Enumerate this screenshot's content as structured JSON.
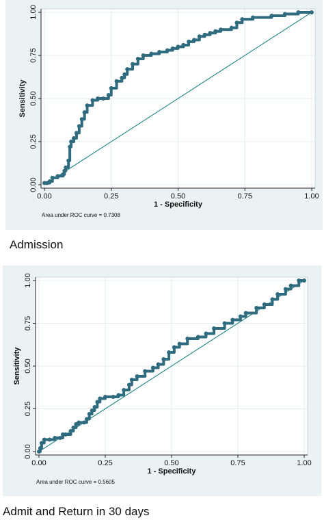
{
  "chart_data": [
    {
      "type": "line",
      "xlabel": "1 - Specificity",
      "ylabel": "Sensitivity",
      "xlim": [
        0,
        1
      ],
      "ylim": [
        0,
        1
      ],
      "xticks": [
        "0.00",
        "0.25",
        "0.50",
        "0.75",
        "1.00"
      ],
      "yticks": [
        "0.00",
        "0.25",
        "0.50",
        "0.75",
        "1.00"
      ],
      "grid": true,
      "annotation": "Area under ROC curve = 0.7308",
      "caption": "Admission",
      "colors": {
        "curve": "#2f6b7f",
        "reference": "#2e8b8b",
        "background": "#eaf2f3",
        "plot": "#ffffff"
      },
      "series": [
        {
          "values": [
            [
              0,
              0.01
            ],
            [
              0.01,
              0.01
            ],
            [
              0.02,
              0.02
            ],
            [
              0.03,
              0.04
            ],
            [
              0.05,
              0.05
            ],
            [
              0.07,
              0.06
            ],
            [
              0.075,
              0.08
            ],
            [
              0.08,
              0.1
            ],
            [
              0.09,
              0.14
            ],
            [
              0.095,
              0.22
            ],
            [
              0.1,
              0.25
            ],
            [
              0.11,
              0.27
            ],
            [
              0.12,
              0.3
            ],
            [
              0.13,
              0.34
            ],
            [
              0.14,
              0.38
            ],
            [
              0.15,
              0.42
            ],
            [
              0.16,
              0.46
            ],
            [
              0.18,
              0.49
            ],
            [
              0.2,
              0.5
            ],
            [
              0.22,
              0.5
            ],
            [
              0.24,
              0.52
            ],
            [
              0.25,
              0.56
            ],
            [
              0.27,
              0.6
            ],
            [
              0.29,
              0.62
            ],
            [
              0.3,
              0.64
            ],
            [
              0.31,
              0.67
            ],
            [
              0.33,
              0.7
            ],
            [
              0.35,
              0.73
            ],
            [
              0.37,
              0.75
            ],
            [
              0.4,
              0.76
            ],
            [
              0.43,
              0.77
            ],
            [
              0.46,
              0.78
            ],
            [
              0.48,
              0.79
            ],
            [
              0.5,
              0.8
            ],
            [
              0.52,
              0.81
            ],
            [
              0.54,
              0.83
            ],
            [
              0.56,
              0.84
            ],
            [
              0.58,
              0.86
            ],
            [
              0.6,
              0.87
            ],
            [
              0.62,
              0.88
            ],
            [
              0.64,
              0.89
            ],
            [
              0.66,
              0.9
            ],
            [
              0.7,
              0.91
            ],
            [
              0.72,
              0.94
            ],
            [
              0.74,
              0.96
            ],
            [
              0.78,
              0.97
            ],
            [
              0.85,
              0.98
            ],
            [
              0.9,
              0.99
            ],
            [
              0.95,
              1
            ],
            [
              1,
              1
            ]
          ]
        },
        {
          "values": [
            [
              0,
              0
            ],
            [
              1,
              1
            ]
          ]
        }
      ]
    },
    {
      "type": "line",
      "xlabel": "1 - Specificity",
      "ylabel": "Sensitivity",
      "xlim": [
        0,
        1
      ],
      "ylim": [
        0,
        1
      ],
      "xticks": [
        "0.00",
        "0.25",
        "0.50",
        "0.75",
        "1.00"
      ],
      "yticks": [
        "0.00",
        "0.25",
        "0.50",
        "0.75",
        "1.00"
      ],
      "grid": true,
      "annotation": "Area under ROC curve = 0.5605",
      "caption": "Admit and Return in 30 days",
      "colors": {
        "curve": "#2f6b7f",
        "reference": "#2e8b8b",
        "background": "#eaf2f3",
        "plot": "#ffffff"
      },
      "series": [
        {
          "values": [
            [
              0,
              0
            ],
            [
              0.005,
              0.02
            ],
            [
              0.01,
              0.05
            ],
            [
              0.02,
              0.07
            ],
            [
              0.04,
              0.07
            ],
            [
              0.06,
              0.08
            ],
            [
              0.08,
              0.08
            ],
            [
              0.09,
              0.1
            ],
            [
              0.1,
              0.1
            ],
            [
              0.12,
              0.12
            ],
            [
              0.13,
              0.14
            ],
            [
              0.14,
              0.16
            ],
            [
              0.15,
              0.17
            ],
            [
              0.17,
              0.17
            ],
            [
              0.18,
              0.19
            ],
            [
              0.19,
              0.22
            ],
            [
              0.2,
              0.24
            ],
            [
              0.21,
              0.26
            ],
            [
              0.22,
              0.29
            ],
            [
              0.23,
              0.31
            ],
            [
              0.25,
              0.32
            ],
            [
              0.28,
              0.32
            ],
            [
              0.3,
              0.33
            ],
            [
              0.32,
              0.36
            ],
            [
              0.34,
              0.39
            ],
            [
              0.35,
              0.42
            ],
            [
              0.37,
              0.44
            ],
            [
              0.4,
              0.47
            ],
            [
              0.43,
              0.49
            ],
            [
              0.45,
              0.51
            ],
            [
              0.47,
              0.54
            ],
            [
              0.49,
              0.58
            ],
            [
              0.51,
              0.61
            ],
            [
              0.53,
              0.63
            ],
            [
              0.56,
              0.66
            ],
            [
              0.6,
              0.67
            ],
            [
              0.63,
              0.69
            ],
            [
              0.66,
              0.72
            ],
            [
              0.7,
              0.75
            ],
            [
              0.73,
              0.77
            ],
            [
              0.76,
              0.79
            ],
            [
              0.78,
              0.81
            ],
            [
              0.82,
              0.84
            ],
            [
              0.85,
              0.86
            ],
            [
              0.88,
              0.89
            ],
            [
              0.9,
              0.92
            ],
            [
              0.93,
              0.95
            ],
            [
              0.95,
              0.97
            ],
            [
              0.98,
              1
            ],
            [
              1,
              1
            ]
          ]
        },
        {
          "values": [
            [
              0,
              0
            ],
            [
              1,
              1
            ]
          ]
        }
      ]
    }
  ]
}
